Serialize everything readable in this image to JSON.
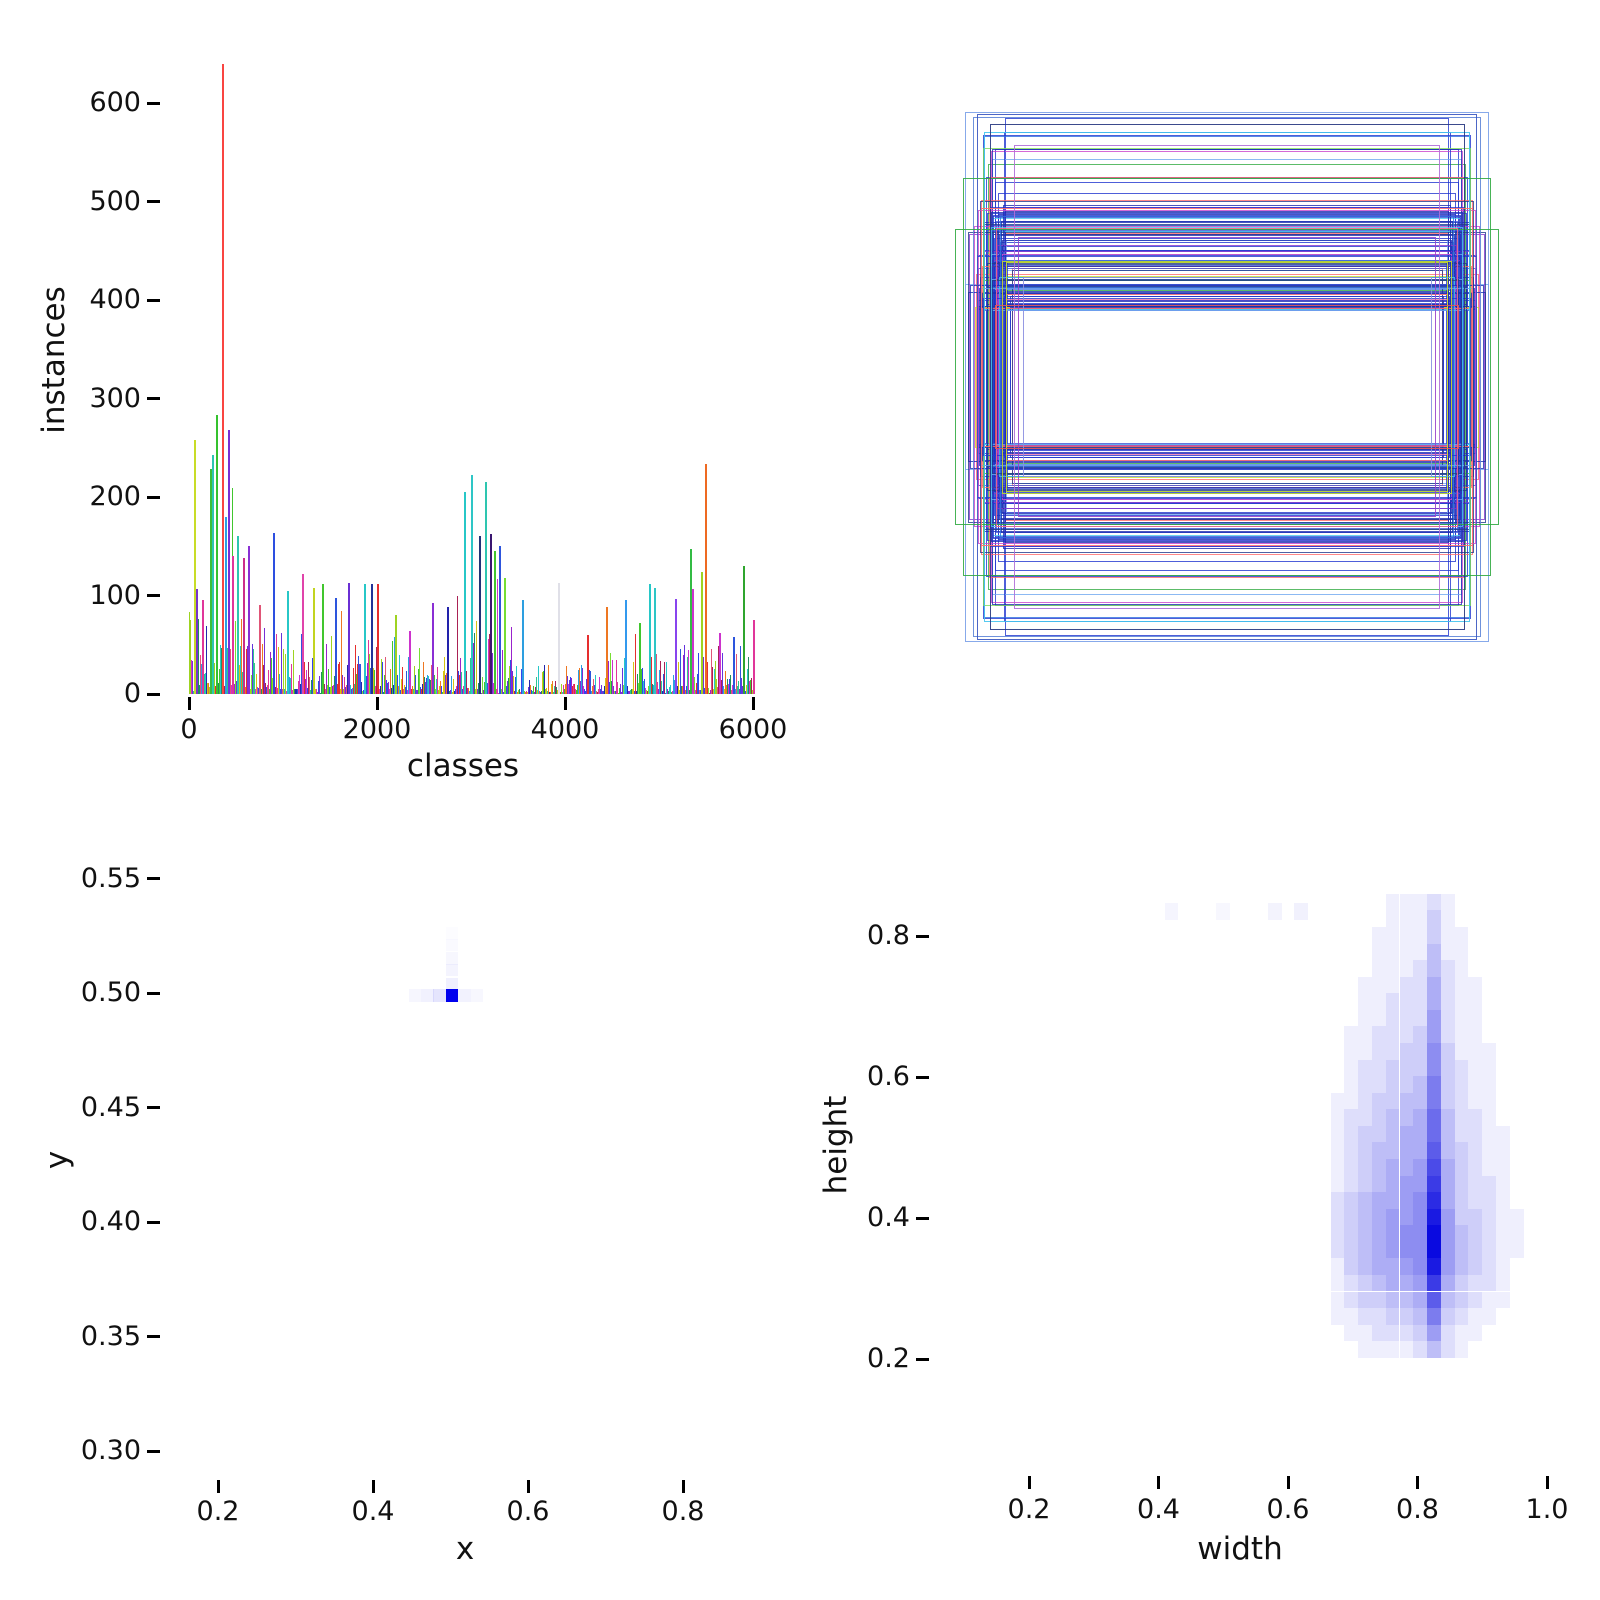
{
  "figure": {
    "background": "#ffffff"
  },
  "panels": {
    "p1": {
      "ylabel": "instances",
      "xlabel": "classes",
      "ytick_labels": [
        "0",
        "100",
        "200",
        "300",
        "400",
        "500",
        "600"
      ],
      "ytick_values": [
        0,
        100,
        200,
        300,
        400,
        500,
        600
      ],
      "xtick_labels": [
        "0",
        "2000",
        "4000",
        "6000"
      ],
      "xtick_values": [
        0,
        2000,
        4000,
        6000
      ]
    },
    "p3": {
      "ylabel": "y",
      "xlabel": "x",
      "ytick_labels": [
        "0.55",
        "0.50",
        "0.45",
        "0.40",
        "0.35",
        "0.30"
      ],
      "ytick_values": [
        0.55,
        0.5,
        0.45,
        0.4,
        0.35,
        0.3
      ],
      "xtick_labels": [
        "0.2",
        "0.4",
        "0.6",
        "0.8"
      ],
      "xtick_values": [
        0.2,
        0.4,
        0.6,
        0.8
      ]
    },
    "p4": {
      "ylabel": "height",
      "xlabel": "width",
      "ytick_labels": [
        "0.8",
        "0.6",
        "0.4",
        "0.2"
      ],
      "ytick_values": [
        0.8,
        0.6,
        0.4,
        0.2
      ],
      "xtick_labels": [
        "0.2",
        "0.4",
        "0.6",
        "0.8",
        "1.0"
      ],
      "xtick_values": [
        0.2,
        0.4,
        0.6,
        0.8,
        1.0
      ]
    }
  },
  "chart_data": [
    {
      "panel": "instances-per-class",
      "type": "bar",
      "xlabel": "classes",
      "ylabel": "instances",
      "xlim": [
        0,
        6040
      ],
      "ylim": [
        0,
        660
      ],
      "xticks": [
        0,
        2000,
        4000,
        6000
      ],
      "yticks": [
        0,
        100,
        200,
        300,
        400,
        500,
        600
      ],
      "grid": false,
      "description": "Dense multicolor histogram of instance counts over ~6000 classes; most bars 5-120, tallest red spike ~640 at class ~360, secondary cluster 160-220 near classes 2900-3360, orange spike ~234 near class 5500.",
      "peaks": [
        [
          60,
          258,
          "#c8dc28"
        ],
        [
          85,
          107,
          "#7733cc"
        ],
        [
          150,
          95,
          "#e0369a"
        ],
        [
          230,
          228,
          "#3bbf3b"
        ],
        [
          255,
          243,
          "#2ec6b0"
        ],
        [
          300,
          283,
          "#35c22e"
        ],
        [
          360,
          640,
          "#f94541"
        ],
        [
          395,
          180,
          "#2d9fe0"
        ],
        [
          430,
          268,
          "#7a2fd4"
        ],
        [
          465,
          140,
          "#e0369a"
        ],
        [
          520,
          160,
          "#2ec6b0"
        ],
        [
          585,
          138,
          "#cc2e8a"
        ],
        [
          640,
          150,
          "#8a2fd4"
        ],
        [
          760,
          90,
          "#e05577"
        ],
        [
          900,
          163,
          "#2d4fe0"
        ],
        [
          1050,
          105,
          "#27c7c7"
        ],
        [
          1210,
          122,
          "#e044aa"
        ],
        [
          1330,
          108,
          "#c2d420"
        ],
        [
          1420,
          112,
          "#41c62e"
        ],
        [
          1560,
          98,
          "#2d55dd"
        ],
        [
          1700,
          113,
          "#6a2fd4"
        ],
        [
          1870,
          112,
          "#27c7c7"
        ],
        [
          1950,
          112,
          "#223399"
        ],
        [
          2010,
          112,
          "#e62e2e"
        ],
        [
          2200,
          80,
          "#9ed321"
        ],
        [
          2350,
          64,
          "#cc33cc"
        ],
        [
          2600,
          92,
          "#8a2fd4"
        ],
        [
          2750,
          88,
          "#2222aa"
        ],
        [
          2940,
          205,
          "#27c7c7"
        ],
        [
          3010,
          222,
          "#2ec6c6"
        ],
        [
          3090,
          160,
          "#223377"
        ],
        [
          3160,
          215,
          "#2ec6b0"
        ],
        [
          3210,
          162,
          "#3a1670"
        ],
        [
          3260,
          145,
          "#41c62e"
        ],
        [
          3310,
          150,
          "#2d55dd"
        ],
        [
          3360,
          118,
          "#77dd33"
        ],
        [
          3550,
          95,
          "#2d9fe0"
        ],
        [
          3936,
          113,
          "#e0e0e8"
        ],
        [
          4240,
          60,
          "#e62e2e"
        ],
        [
          4450,
          88,
          "#ee7722"
        ],
        [
          4650,
          95,
          "#3399ee"
        ],
        [
          4800,
          72,
          "#41c62e"
        ],
        [
          4900,
          112,
          "#27c7c7"
        ],
        [
          4960,
          108,
          "#2ec6c6"
        ],
        [
          5180,
          96,
          "#8844ee"
        ],
        [
          5340,
          147,
          "#33bb44"
        ],
        [
          5360,
          107,
          "#cc33cc"
        ],
        [
          5460,
          124,
          "#9ed321"
        ],
        [
          5500,
          234,
          "#ee6a22"
        ],
        [
          5650,
          62,
          "#cc33cc"
        ],
        [
          5800,
          58,
          "#2d55dd"
        ],
        [
          5900,
          130,
          "#2fa52e"
        ],
        [
          6010,
          75,
          "#e0369a"
        ]
      ],
      "background_bars": {
        "seed": 20240601,
        "count": 566,
        "base_min": 4,
        "base_span": 52,
        "power": 2.1,
        "gap_prob": 0.05,
        "spike_prob": 0.05,
        "segments": [
          [
            0,
            120,
            1.5,
            260
          ],
          [
            120,
            600,
            1.7,
            265
          ],
          [
            600,
            1000,
            1.2,
            170
          ],
          [
            1000,
            1600,
            1.1,
            130
          ],
          [
            1600,
            2300,
            1.05,
            120
          ],
          [
            2300,
            2900,
            0.85,
            100
          ],
          [
            2900,
            3450,
            1.35,
            225
          ],
          [
            3450,
            4000,
            0.55,
            70
          ],
          [
            4000,
            4400,
            0.6,
            115
          ],
          [
            4400,
            5200,
            0.75,
            100
          ],
          [
            5200,
            6040,
            0.9,
            150
          ]
        ],
        "palette": [
          "#e62e2e",
          "#ee7722",
          "#d4c416",
          "#9ed321",
          "#41c62e",
          "#2ec68f",
          "#27c7c7",
          "#2d9fe0",
          "#2d55dd",
          "#2626ad",
          "#6633dd",
          "#9922cc",
          "#cc33cc",
          "#e0369a",
          "#e05577",
          "#1f8f5f",
          "#77dd33",
          "#3344ee",
          "#aa2255",
          "#7a2fd4"
        ]
      }
    },
    {
      "panel": "bounding-boxes-overlay",
      "type": "boxes",
      "description": "All label boxes drawn concentric at image center (0.5, 0.5); widths cluster near 0.84, heights 0.2-0.8, mostly blue outlines with scattered red, pink, green, cyan, purple and yellow-green ones; hollow white center.",
      "center_x": 0.5,
      "center_y": 0.5,
      "feature_boxes": [
        [
          0.95,
          0.8,
          "#7aa0e8"
        ],
        [
          0.92,
          0.785,
          "#5f86d8"
        ],
        [
          0.905,
          0.795,
          "#3a55c0"
        ],
        [
          0.88,
          0.74,
          "#44c4ee"
        ],
        [
          0.985,
          0.445,
          "#33ab44"
        ],
        [
          0.955,
          0.6,
          "#33ab44"
        ],
        [
          0.86,
          0.765,
          "#26367f"
        ],
        [
          0.89,
          0.51,
          "#ff7070"
        ],
        [
          0.8,
          0.25,
          "#ff7777"
        ],
        [
          0.835,
          0.45,
          "#ee6688"
        ],
        [
          0.8,
          0.345,
          "#c8e029"
        ],
        [
          0.815,
          0.35,
          "#bcd92a"
        ],
        [
          0.74,
          0.3,
          "#8b8fe0"
        ],
        [
          0.755,
          0.42,
          "#9a44cc"
        ],
        [
          0.77,
          0.7,
          "#b06fd8"
        ],
        [
          0.84,
          0.215,
          "#e65555"
        ]
      ],
      "random_boxes": {
        "seed": 987654321,
        "count": 140,
        "width_mean": 0.845,
        "width_sigma": 0.03,
        "width_min": 0.78,
        "width_max": 0.95,
        "wide_prob": 0.08,
        "height_min": 0.2,
        "height_low_span": 0.33,
        "height_low_pow": 1.6,
        "height_tail_prob": 0.2,
        "height_tail_min": 0.5,
        "height_tail_span": 0.3,
        "palette": [
          [
            "#2236cf",
            30
          ],
          [
            "#1b2db0",
            14
          ],
          [
            "#3c55d6",
            12
          ],
          [
            "#2d6fe0",
            6
          ],
          [
            "#6fa8f0",
            8
          ],
          [
            "#49c9ef",
            5
          ],
          [
            "#223a8c",
            6
          ],
          [
            "#ff6a6a",
            5
          ],
          [
            "#ee77aa",
            4
          ],
          [
            "#cc44cc",
            3
          ],
          [
            "#8833cc",
            3
          ],
          [
            "#33ab44",
            3
          ],
          [
            "#7ddd55",
            1
          ],
          [
            "#c6de2b",
            2
          ],
          [
            "#e0529a",
            2
          ]
        ]
      }
    },
    {
      "panel": "xy-center-heatmap",
      "type": "heatmap",
      "xlabel": "x",
      "ylabel": "y",
      "xticks": [
        0.2,
        0.4,
        0.6,
        0.8
      ],
      "yticks": [
        0.55,
        0.5,
        0.45,
        0.4,
        0.35,
        0.3
      ],
      "cell_color": "#0000ee",
      "cell_w": 0.0161,
      "cell_h": 0.00546,
      "description": "Nearly all box centers at one hot cell near (0.50, 0.50) with faint horizontal and upward smear.",
      "cells": [
        [
          0.502,
          0.499,
          1.0
        ],
        [
          0.486,
          0.499,
          0.1
        ],
        [
          0.47,
          0.499,
          0.055
        ],
        [
          0.454,
          0.499,
          0.035
        ],
        [
          0.518,
          0.499,
          0.05
        ],
        [
          0.534,
          0.499,
          0.03
        ],
        [
          0.502,
          0.504,
          0.06
        ],
        [
          0.502,
          0.51,
          0.045
        ],
        [
          0.502,
          0.515,
          0.03
        ],
        [
          0.502,
          0.521,
          0.02
        ],
        [
          0.502,
          0.526,
          0.012
        ]
      ]
    },
    {
      "panel": "width-height-heatmap",
      "type": "heatmap",
      "xlabel": "width",
      "ylabel": "height",
      "xticks": [
        0.2,
        0.4,
        0.6,
        0.8,
        1.0
      ],
      "yticks": [
        0.8,
        0.6,
        0.4,
        0.2
      ],
      "cell_color": "#0a0ae0",
      "description": "Dense vertical stripe at width ~0.84 spanning heights 0.21-0.85, darkest near height 0.35-0.42, with diffuse cloud widths 0.68-0.95.",
      "grid": {
        "w0": 0.655,
        "dw": 0.0213,
        "h0": 0.848,
        "dh": 0.0235,
        "rows": [
          "000001112100000",
          "000001113100000",
          "000011113110000",
          "000011114110000",
          "000011124210000",
          "000111225211000",
          "000112225211000",
          "000112226211000",
          "001122236211000",
          "001122337311100",
          "001223337321100",
          "001223348321100",
          "011233448321100",
          "012234459422100",
          "012334559422110",
          "01234455a432110",
          "01234556b532110",
          "01234566c532210",
          "02345567d532210",
          "02345667e633211",
          "02345677f643211",
          "02345677f643211",
          "01345567e643210",
          "01234556c532210",
          "01233445a432110",
          "011223348321100",
          "001122236211000",
          "000111124210000"
        ]
      },
      "extra_cells": [
        [
          0.42,
          0.835,
          0.04
        ],
        [
          0.5,
          0.835,
          0.03
        ],
        [
          0.58,
          0.835,
          0.05
        ],
        [
          0.62,
          0.835,
          0.06
        ]
      ]
    }
  ]
}
